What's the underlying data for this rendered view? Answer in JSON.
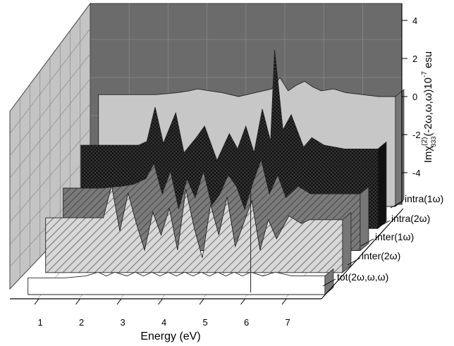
{
  "chart_data": {
    "type": "area",
    "view": "3d-waterfall",
    "xlabel": "Energy (eV)",
    "xticks": [
      "1",
      "2",
      "3",
      "4",
      "5",
      "6",
      "7"
    ],
    "xlim": [
      0.3,
      7.8
    ],
    "zlabel": "Imχ",
    "zlabel_sup": "(2)",
    "zlabel_sub": "333",
    "zlabel_rest": "(-2ω,ω,ω)10",
    "zlabel_exp": "-7",
    "zlabel_unit": " esu",
    "zticks": [
      "4",
      "2",
      "0",
      "-2",
      "-4"
    ],
    "zlim": [
      -5.5,
      5
    ],
    "series": [
      {
        "name": "intra(1ω)",
        "fill": "#c7c7c7",
        "x": [
          0.6,
          1.0,
          1.5,
          2.0,
          2.5,
          2.8,
          3.0,
          3.3,
          3.6,
          4.0,
          4.4,
          4.8,
          5.0,
          5.2,
          5.4,
          5.6,
          5.8,
          6.0,
          6.3,
          6.6,
          7.0,
          7.4,
          7.8
        ],
        "y": [
          0.1,
          0.1,
          0.1,
          0.1,
          0.2,
          0.3,
          0.4,
          0.3,
          0.2,
          0.0,
          0.2,
          0.4,
          1.0,
          0.3,
          0.6,
          0.8,
          0.5,
          0.3,
          0.4,
          0.2,
          0.1,
          0.0,
          0.0
        ]
      },
      {
        "name": "intra(2ω)",
        "fill": "#1c1c1c",
        "x": [
          0.6,
          1.0,
          1.5,
          2.0,
          2.2,
          2.4,
          2.6,
          2.9,
          3.1,
          3.4,
          3.6,
          3.9,
          4.2,
          4.4,
          4.6,
          4.8,
          5.0,
          5.2,
          5.3,
          5.5,
          5.7,
          6.0,
          6.2,
          6.5,
          7.0,
          7.4,
          7.8
        ],
        "y": [
          -1.4,
          -1.4,
          -1.4,
          -1.4,
          -1.2,
          0.6,
          -1.3,
          0.3,
          -1.8,
          -1.0,
          -0.4,
          -2.2,
          -0.8,
          -1.6,
          -0.4,
          -1.8,
          0.5,
          -1.2,
          3.6,
          -0.6,
          0.2,
          -1.5,
          -1.0,
          -1.4,
          -1.6,
          -1.6,
          -1.6
        ]
      },
      {
        "name": "inter(1ω)",
        "fill": "#8a8a8a",
        "x": [
          0.6,
          1.0,
          1.5,
          2.0,
          2.3,
          2.6,
          2.8,
          3.0,
          3.2,
          3.4,
          3.6,
          3.8,
          4.0,
          4.2,
          4.4,
          4.6,
          4.8,
          5.0,
          5.2,
          5.4,
          5.6,
          5.8,
          6.0,
          6.3,
          6.6,
          7.0,
          7.4,
          7.8
        ],
        "y": [
          -2.5,
          -2.5,
          -2.5,
          -2.4,
          -2.3,
          -2.0,
          -1.2,
          -2.8,
          -1.6,
          -3.6,
          -2.0,
          -3.0,
          -1.6,
          -3.4,
          -2.8,
          -1.8,
          -2.4,
          -3.6,
          -2.2,
          -1.0,
          -2.8,
          -1.8,
          -3.0,
          -2.4,
          -2.8,
          -2.8,
          -2.8,
          -2.8
        ]
      },
      {
        "name": "inter(2ω)",
        "fill": "#b9b9b9",
        "x": [
          0.6,
          1.0,
          1.5,
          2.0,
          2.2,
          2.4,
          2.6,
          2.8,
          3.0,
          3.2,
          3.4,
          3.6,
          3.8,
          4.0,
          4.2,
          4.4,
          4.6,
          4.8,
          5.0,
          5.2,
          5.4,
          5.6,
          5.8,
          6.0,
          6.2,
          6.5,
          6.8,
          7.0,
          7.4,
          7.8
        ],
        "y": [
          -2.9,
          -2.9,
          -2.9,
          -2.9,
          -1.2,
          -3.6,
          -1.6,
          -3.2,
          -4.6,
          -2.6,
          -3.8,
          -2.4,
          -4.6,
          -1.4,
          -3.4,
          -5.0,
          -2.2,
          -3.8,
          -1.8,
          -4.4,
          -3.2,
          -2.0,
          -4.6,
          -3.0,
          -4.0,
          -2.8,
          -3.2,
          -3.0,
          -3.0,
          -3.0
        ]
      },
      {
        "name": "tot(2ω,ω,ω)",
        "fill": "#ffffff",
        "x": [
          0.6,
          1.0,
          1.5,
          2.0,
          2.3,
          2.5,
          2.7,
          3.0,
          3.2,
          3.4,
          3.6,
          3.8,
          4.0,
          4.2,
          4.4,
          4.6,
          4.8,
          5.0,
          5.2,
          5.4,
          5.6,
          5.8,
          6.0,
          6.3,
          6.6,
          7.0,
          7.4,
          7.8
        ],
        "y": [
          -4.9,
          -4.9,
          -4.9,
          -4.8,
          -4.6,
          -4.8,
          -4.6,
          -4.8,
          -4.6,
          -4.8,
          -4.6,
          -4.8,
          -4.6,
          -4.8,
          -4.6,
          -4.8,
          -4.6,
          -4.8,
          -4.6,
          -4.8,
          -4.6,
          -4.8,
          -4.6,
          -4.8,
          -4.6,
          -4.8,
          -4.8,
          -4.8
        ]
      }
    ],
    "grid": true,
    "legend": "right, stacked along depth axis"
  }
}
